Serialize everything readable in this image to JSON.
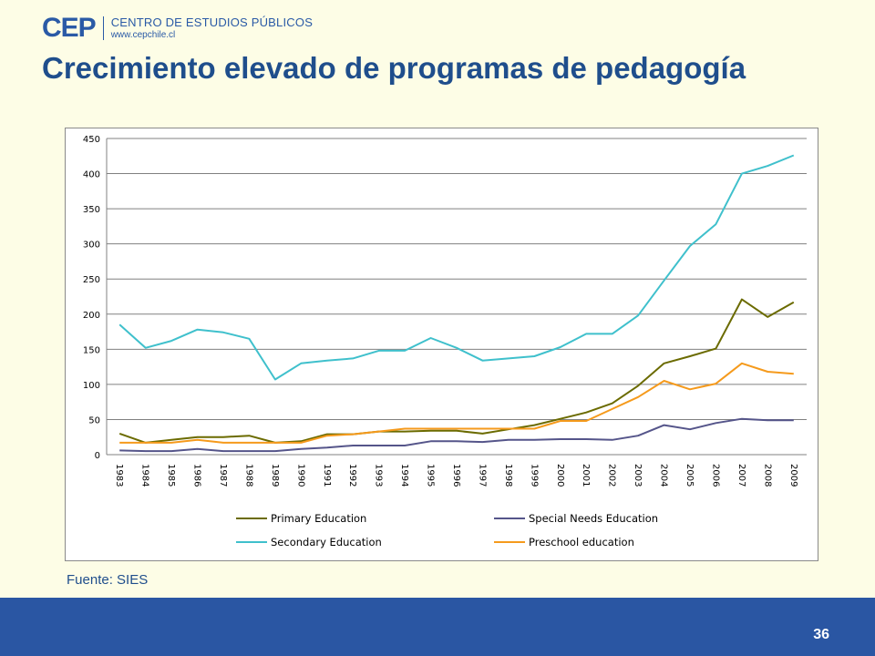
{
  "header": {
    "logo_mark": "CEP",
    "logo_name": "CENTRO DE ESTUDIOS PÚBLICOS",
    "logo_url": "www.cepchile.cl",
    "title": "Crecimiento elevado de programas de pedagogía"
  },
  "source": "Fuente: SIES",
  "page_number": "36",
  "chart_data": {
    "type": "line",
    "title": "",
    "xlabel": "",
    "ylabel": "",
    "ylim": [
      0,
      450
    ],
    "yticks": [
      0,
      50,
      100,
      150,
      200,
      250,
      300,
      350,
      400,
      450
    ],
    "grid": true,
    "legend_position": "bottom",
    "categories": [
      "1983",
      "1984",
      "1985",
      "1986",
      "1987",
      "1988",
      "1989",
      "1990",
      "1991",
      "1992",
      "1993",
      "1994",
      "1995",
      "1996",
      "1997",
      "1998",
      "1999",
      "2000",
      "2001",
      "2002",
      "2003",
      "2004",
      "2005",
      "2006",
      "2007",
      "2008",
      "2009"
    ],
    "series": [
      {
        "name": "Primary Education",
        "color": "#6b6b00",
        "values": [
          30,
          17,
          21,
          25,
          25,
          27,
          17,
          19,
          29,
          29,
          33,
          33,
          34,
          34,
          30,
          36,
          42,
          51,
          60,
          73,
          98,
          130,
          140,
          151,
          221,
          196,
          217
        ]
      },
      {
        "name": "Special Needs Education",
        "color": "#55558a",
        "values": [
          6,
          5,
          5,
          8,
          5,
          5,
          5,
          8,
          10,
          13,
          13,
          13,
          19,
          19,
          18,
          21,
          21,
          22,
          22,
          21,
          27,
          42,
          36,
          45,
          51,
          49,
          49
        ]
      },
      {
        "name": "Secondary Education",
        "color": "#3fc0cc",
        "values": [
          185,
          152,
          162,
          178,
          174,
          165,
          107,
          130,
          134,
          137,
          148,
          148,
          166,
          152,
          134,
          137,
          140,
          153,
          172,
          172,
          198,
          248,
          297,
          328,
          400,
          411,
          426
        ]
      },
      {
        "name": "Preschool education",
        "color": "#f59a1c",
        "values": [
          17,
          17,
          17,
          21,
          17,
          17,
          17,
          17,
          27,
          29,
          33,
          37,
          37,
          37,
          37,
          37,
          37,
          48,
          48,
          65,
          82,
          105,
          93,
          101,
          130,
          118,
          115
        ]
      }
    ]
  }
}
